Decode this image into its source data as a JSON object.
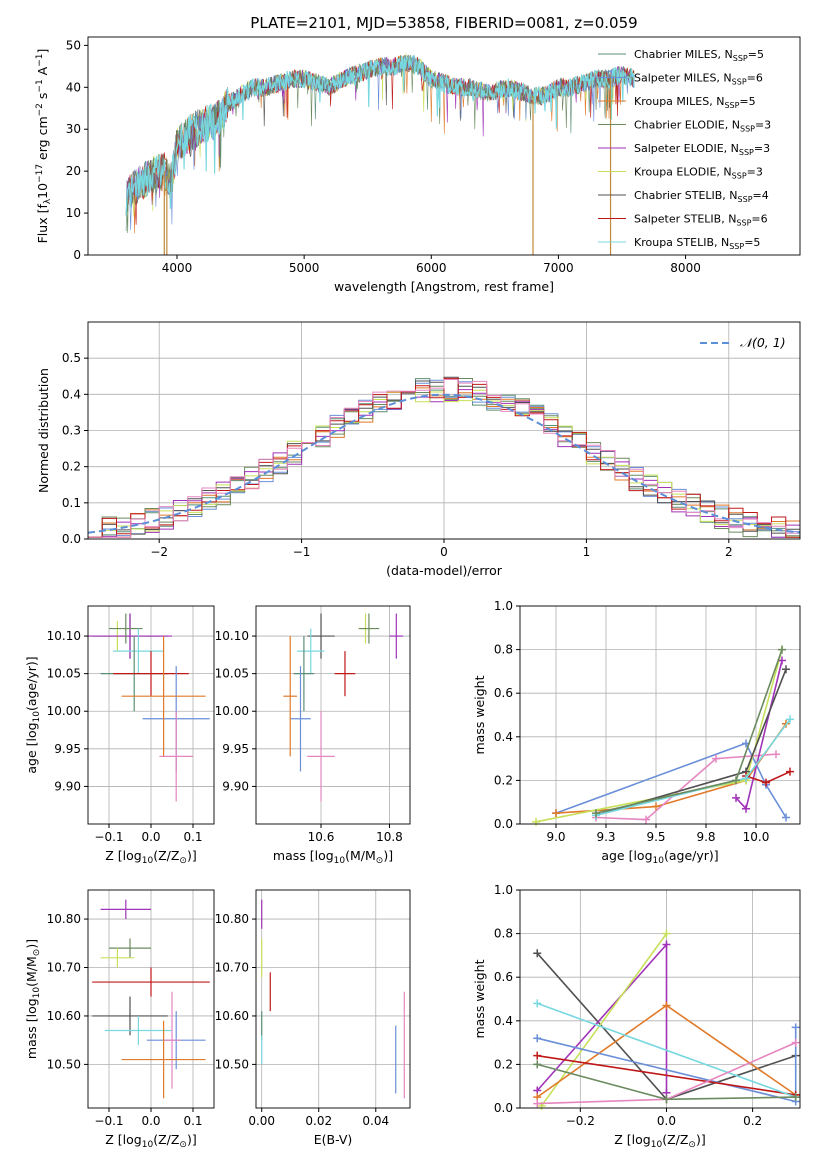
{
  "palette": {
    "chabrier_miles": "#5b8f75",
    "salpeter_miles": "#6a8fd8",
    "kroupa_miles": "#e07a2a",
    "chabrier_elodie": "#6b8a5f",
    "salpeter_elodie": "#a033b8",
    "kroupa_elodie": "#c7e05a",
    "chabrier_stelib": "#505050",
    "salpeter_stelib": "#c01818",
    "kroupa_stelib": "#78d8e0",
    "extra_pink": "#e586c0",
    "gauss": "#5b8fd8"
  },
  "chart_data": [
    {
      "id": "spectrum",
      "type": "line",
      "title": "PLATE=2101, MJD=53858, FIBERID=0081, z=0.059",
      "xlabel": "wavelength [Angstrom, rest frame]",
      "ylabel": "Flux [f$_\\lambda$10$^{-17}$ erg cm$^{-2}$ s$^{-1}$ A$^{-1}$]",
      "ylabel_parts": {
        "a": "Flux [f",
        "b": "λ",
        "c": "10",
        "d": "−17",
        "e": " erg cm",
        "f": "−2",
        "g": " s",
        "h": "−1",
        "i": " A",
        "j": "−1",
        "k": "]"
      },
      "xlim": [
        3300,
        8900
      ],
      "ylim": [
        0,
        52
      ],
      "xticks": [
        4000,
        5000,
        6000,
        7000,
        8000
      ],
      "yticks": [
        0,
        10,
        20,
        30,
        40,
        50
      ],
      "grid": false,
      "legend_position": "upper-right",
      "legend": [
        {
          "base": "Chabrier MILES, N",
          "sub": "SSP",
          "tail": "=5",
          "color": "chabrier_miles"
        },
        {
          "base": "Salpeter MILES, N",
          "sub": "SSP",
          "tail": "=6",
          "color": "salpeter_miles"
        },
        {
          "base": "Kroupa MILES, N",
          "sub": "SSP",
          "tail": "=5",
          "color": "kroupa_miles"
        },
        {
          "base": "Chabrier ELODIE, N",
          "sub": "SSP",
          "tail": "=3",
          "color": "chabrier_elodie"
        },
        {
          "base": "Salpeter ELODIE, N",
          "sub": "SSP",
          "tail": "=3",
          "color": "salpeter_elodie"
        },
        {
          "base": "Kroupa ELODIE, N",
          "sub": "SSP",
          "tail": "=3",
          "color": "kroupa_elodie"
        },
        {
          "base": "Chabrier STELIB, N",
          "sub": "SSP",
          "tail": "=4",
          "color": "chabrier_stelib"
        },
        {
          "base": "Salpeter STELIB, N",
          "sub": "SSP",
          "tail": "=6",
          "color": "salpeter_stelib"
        },
        {
          "base": "Kroupa STELIB, N",
          "sub": "SSP",
          "tail": "=5",
          "color": "kroupa_stelib"
        }
      ],
      "continuum": [
        [
          3600,
          14
        ],
        [
          3700,
          17
        ],
        [
          3800,
          19
        ],
        [
          3900,
          20
        ],
        [
          3950,
          17
        ],
        [
          4000,
          26
        ],
        [
          4100,
          29
        ],
        [
          4200,
          31
        ],
        [
          4300,
          32
        ],
        [
          4350,
          33
        ],
        [
          4400,
          36
        ],
        [
          4500,
          38
        ],
        [
          4600,
          40
        ],
        [
          4700,
          40
        ],
        [
          4800,
          41
        ],
        [
          4900,
          42
        ],
        [
          5000,
          42
        ],
        [
          5100,
          41
        ],
        [
          5200,
          40
        ],
        [
          5300,
          42
        ],
        [
          5400,
          43
        ],
        [
          5500,
          44
        ],
        [
          5600,
          45
        ],
        [
          5700,
          45
        ],
        [
          5800,
          46
        ],
        [
          5900,
          45
        ],
        [
          6000,
          42
        ],
        [
          6100,
          41
        ],
        [
          6200,
          40
        ],
        [
          6300,
          40
        ],
        [
          6400,
          39
        ],
        [
          6500,
          39
        ],
        [
          6600,
          40
        ],
        [
          6700,
          39
        ],
        [
          6800,
          38
        ],
        [
          6900,
          38
        ],
        [
          7000,
          40
        ],
        [
          7100,
          40
        ],
        [
          7200,
          41
        ],
        [
          7300,
          42
        ],
        [
          7400,
          42
        ],
        [
          7500,
          43
        ],
        [
          7600,
          42
        ]
      ],
      "spikes_down": [
        [
          3900,
          0
        ],
        [
          3920,
          0
        ],
        [
          6800,
          0
        ],
        [
          7410,
          0
        ]
      ]
    },
    {
      "id": "residuals",
      "type": "histogram",
      "xlabel": "(data-model)/error",
      "ylabel": "Normed distribution",
      "xlim": [
        -2.5,
        2.5
      ],
      "ylim": [
        0,
        0.6
      ],
      "xticks": [
        -2,
        -1,
        0,
        1,
        2
      ],
      "yticks": [
        0.0,
        0.1,
        0.2,
        0.3,
        0.4,
        0.5
      ],
      "grid": true,
      "legend_position": "upper-right",
      "legend": [
        {
          "label": "𝒩(0, 1)",
          "color": "gauss",
          "style": "dashed"
        }
      ],
      "bin_width": 0.1
    },
    {
      "id": "age_vs_Z",
      "type": "errorbar",
      "xlabel": "Z [log$_{10}$(Z/Z$_\\odot$)]",
      "ylabel": "age  [log$_{10}$(age/yr)]",
      "xlim": [
        -0.15,
        0.15
      ],
      "ylim": [
        9.85,
        10.14
      ],
      "xticks": [
        -0.1,
        0.0,
        0.1
      ],
      "yticks": [
        9.9,
        9.95,
        10.0,
        10.05,
        10.1
      ],
      "grid": true,
      "points": [
        {
          "x": -0.05,
          "y": 10.1,
          "xerr": 0.09,
          "yerr": 0.03,
          "color": "chabrier_stelib"
        },
        {
          "x": -0.08,
          "y": 10.1,
          "xerr": 0.02,
          "yerr": 0.02,
          "color": "kroupa_elodie"
        },
        {
          "x": -0.05,
          "y": 10.1,
          "xerr": 0.1,
          "yerr": 0.03,
          "color": "salpeter_elodie"
        },
        {
          "x": -0.06,
          "y": 10.11,
          "xerr": 0.04,
          "yerr": 0.02,
          "color": "chabrier_elodie"
        },
        {
          "x": -0.03,
          "y": 10.08,
          "xerr": 0.06,
          "yerr": 0.03,
          "color": "kroupa_stelib"
        },
        {
          "x": -0.04,
          "y": 10.05,
          "xerr": 0.08,
          "yerr": 0.05,
          "color": "chabrier_miles"
        },
        {
          "x": 0.0,
          "y": 10.05,
          "xerr": 0.09,
          "yerr": 0.03,
          "color": "salpeter_stelib"
        },
        {
          "x": 0.06,
          "y": 9.99,
          "xerr": 0.08,
          "yerr": 0.07,
          "color": "salpeter_miles"
        },
        {
          "x": 0.03,
          "y": 10.02,
          "xerr": 0.1,
          "yerr": 0.08,
          "color": "kroupa_miles"
        },
        {
          "x": 0.06,
          "y": 9.94,
          "xerr": 0.04,
          "yerr": 0.06,
          "color": "extra_pink"
        }
      ]
    },
    {
      "id": "age_vs_mass",
      "type": "errorbar",
      "xlabel": "mass [log$_{10}$(M/M$_\\odot$)]",
      "ylabel": "",
      "xlim": [
        10.41,
        10.86
      ],
      "ylim": [
        9.85,
        10.14
      ],
      "xticks": [
        10.6,
        10.8
      ],
      "yticks": [
        9.9,
        9.95,
        10.0,
        10.05,
        10.1
      ],
      "grid": true,
      "points": [
        {
          "x": 10.6,
          "y": 10.1,
          "xerr": 0.04,
          "yerr": 0.03,
          "color": "chabrier_stelib"
        },
        {
          "x": 10.73,
          "y": 10.11,
          "xerr": 0.02,
          "yerr": 0.02,
          "color": "kroupa_elodie"
        },
        {
          "x": 10.82,
          "y": 10.1,
          "xerr": 0.02,
          "yerr": 0.03,
          "color": "salpeter_elodie"
        },
        {
          "x": 10.74,
          "y": 10.11,
          "xerr": 0.03,
          "yerr": 0.02,
          "color": "chabrier_elodie"
        },
        {
          "x": 10.57,
          "y": 10.08,
          "xerr": 0.04,
          "yerr": 0.03,
          "color": "kroupa_stelib"
        },
        {
          "x": 10.55,
          "y": 10.05,
          "xerr": 0.03,
          "yerr": 0.05,
          "color": "chabrier_miles"
        },
        {
          "x": 10.67,
          "y": 10.05,
          "xerr": 0.03,
          "yerr": 0.03,
          "color": "salpeter_stelib"
        },
        {
          "x": 10.54,
          "y": 9.99,
          "xerr": 0.03,
          "yerr": 0.07,
          "color": "salpeter_miles"
        },
        {
          "x": 10.51,
          "y": 10.02,
          "xerr": 0.02,
          "yerr": 0.08,
          "color": "kroupa_miles"
        },
        {
          "x": 10.6,
          "y": 9.94,
          "xerr": 0.04,
          "yerr": 0.06,
          "color": "extra_pink"
        }
      ]
    },
    {
      "id": "weight_vs_age",
      "type": "line",
      "xlabel": "age  [log$_{10}$(age/yr)]",
      "ylabel": "mass weight",
      "xlim": [
        8.82,
        10.22
      ],
      "ylim": [
        0,
        1.0
      ],
      "xticks": [
        9.0,
        9.25,
        9.5,
        9.75,
        10.0
      ],
      "yticks": [
        0.0,
        0.2,
        0.4,
        0.6,
        0.8,
        1.0
      ],
      "grid": true,
      "series": [
        {
          "color": "salpeter_miles",
          "x": [
            9.0,
            9.95,
            10.05,
            10.15
          ],
          "y": [
            0.05,
            0.37,
            0.18,
            0.03
          ]
        },
        {
          "color": "kroupa_miles",
          "x": [
            9.0,
            9.5,
            9.95,
            10.15
          ],
          "y": [
            0.05,
            0.08,
            0.2,
            0.46
          ]
        },
        {
          "color": "extra_pink",
          "x": [
            9.2,
            9.45,
            9.8,
            10.1
          ],
          "y": [
            0.03,
            0.02,
            0.3,
            0.32
          ]
        },
        {
          "color": "kroupa_elodie",
          "x": [
            8.9,
            9.95,
            10.13
          ],
          "y": [
            0.01,
            0.2,
            0.8
          ]
        },
        {
          "color": "salpeter_elodie",
          "x": [
            9.9,
            9.95,
            10.13
          ],
          "y": [
            0.12,
            0.07,
            0.75
          ]
        },
        {
          "color": "chabrier_stelib",
          "x": [
            9.2,
            9.95,
            10.15
          ],
          "y": [
            0.04,
            0.24,
            0.71
          ]
        },
        {
          "color": "salpeter_stelib",
          "x": [
            9.95,
            10.05,
            10.17
          ],
          "y": [
            0.22,
            0.19,
            0.24
          ]
        },
        {
          "color": "kroupa_stelib",
          "x": [
            9.2,
            9.95,
            10.17
          ],
          "y": [
            0.04,
            0.21,
            0.48
          ]
        },
        {
          "color": "chabrier_elodie",
          "x": [
            9.2,
            9.9,
            10.13
          ],
          "y": [
            0.05,
            0.2,
            0.8
          ]
        }
      ]
    },
    {
      "id": "mass_vs_Z",
      "type": "errorbar",
      "xlabel": "Z [log$_{10}$(Z/Z$_\\odot$)]",
      "ylabel": "mass [log$_{10}$(M/M$_\\odot$)]",
      "xlim": [
        -0.15,
        0.15
      ],
      "ylim": [
        10.41,
        10.86
      ],
      "xticks": [
        -0.1,
        0.0,
        0.1
      ],
      "yticks": [
        10.5,
        10.6,
        10.7,
        10.8
      ],
      "grid": true,
      "points": [
        {
          "x": -0.06,
          "y": 10.82,
          "xerr": 0.06,
          "yerr": 0.02,
          "color": "salpeter_elodie"
        },
        {
          "x": -0.05,
          "y": 10.74,
          "xerr": 0.05,
          "yerr": 0.02,
          "color": "chabrier_elodie"
        },
        {
          "x": -0.08,
          "y": 10.72,
          "xerr": 0.04,
          "yerr": 0.02,
          "color": "kroupa_elodie"
        },
        {
          "x": 0.0,
          "y": 10.67,
          "xerr": 0.14,
          "yerr": 0.03,
          "color": "salpeter_stelib"
        },
        {
          "x": -0.05,
          "y": 10.6,
          "xerr": 0.09,
          "yerr": 0.04,
          "color": "chabrier_stelib"
        },
        {
          "x": -0.03,
          "y": 10.57,
          "xerr": 0.08,
          "yerr": 0.03,
          "color": "kroupa_stelib"
        },
        {
          "x": 0.06,
          "y": 10.55,
          "xerr": 0.07,
          "yerr": 0.06,
          "color": "salpeter_miles"
        },
        {
          "x": 0.05,
          "y": 10.55,
          "xerr": 0.02,
          "yerr": 0.1,
          "color": "extra_pink"
        },
        {
          "x": 0.03,
          "y": 10.51,
          "xerr": 0.1,
          "yerr": 0.08,
          "color": "kroupa_miles"
        }
      ]
    },
    {
      "id": "mass_vs_ebv",
      "type": "errorbar",
      "xlabel": "E(B-V)",
      "ylabel": "",
      "xlim": [
        -0.002,
        0.052
      ],
      "ylim": [
        10.41,
        10.86
      ],
      "xticks": [
        0.0,
        0.02,
        0.04
      ],
      "yticks": [
        10.5,
        10.6,
        10.7,
        10.8
      ],
      "grid": true,
      "points": [
        {
          "x": 0.0,
          "y": 10.81,
          "xerr": 0,
          "yerr": 0.03,
          "color": "salpeter_elodie"
        },
        {
          "x": 0.0,
          "y": 10.72,
          "xerr": 0,
          "yerr": 0.04,
          "color": "kroupa_elodie"
        },
        {
          "x": 0.003,
          "y": 10.65,
          "xerr": 0,
          "yerr": 0.04,
          "color": "salpeter_stelib"
        },
        {
          "x": 0.0,
          "y": 10.58,
          "xerr": 0,
          "yerr": 0.03,
          "color": "chabrier_miles"
        },
        {
          "x": 0.0,
          "y": 10.53,
          "xerr": 0,
          "yerr": 0.03,
          "color": "kroupa_stelib"
        },
        {
          "x": 0.047,
          "y": 10.51,
          "xerr": 0,
          "yerr": 0.07,
          "color": "salpeter_miles"
        },
        {
          "x": 0.05,
          "y": 10.54,
          "xerr": 0,
          "yerr": 0.11,
          "color": "extra_pink"
        }
      ]
    },
    {
      "id": "weight_vs_Z",
      "type": "line",
      "xlabel": "Z [log$_{10}$(Z/Z$_\\odot$)]",
      "ylabel": "mass weight",
      "xlim": [
        -0.34,
        0.31
      ],
      "ylim": [
        0,
        1.0
      ],
      "xticks": [
        -0.2,
        0.0,
        0.2
      ],
      "yticks": [
        0.0,
        0.2,
        0.4,
        0.6,
        0.8,
        1.0
      ],
      "grid": true,
      "series": [
        {
          "color": "chabrier_stelib",
          "x": [
            -0.3,
            0.0,
            0.3
          ],
          "y": [
            0.71,
            0.04,
            0.24
          ]
        },
        {
          "color": "salpeter_elodie",
          "x": [
            -0.3,
            0.0,
            0.0
          ],
          "y": [
            0.08,
            0.75,
            0.07
          ]
        },
        {
          "color": "kroupa_elodie",
          "x": [
            -0.29,
            0.0
          ],
          "y": [
            0.01,
            0.8
          ]
        },
        {
          "color": "kroupa_miles",
          "x": [
            -0.3,
            0.0,
            0.3
          ],
          "y": [
            0.05,
            0.47,
            0.06
          ]
        },
        {
          "color": "salpeter_miles",
          "x": [
            -0.3,
            0.3,
            0.3
          ],
          "y": [
            0.32,
            0.03,
            0.37
          ]
        },
        {
          "color": "salpeter_stelib",
          "x": [
            -0.3,
            0.3
          ],
          "y": [
            0.24,
            0.06
          ]
        },
        {
          "color": "kroupa_stelib",
          "x": [
            -0.3,
            0.3
          ],
          "y": [
            0.48,
            0.05
          ]
        },
        {
          "color": "extra_pink",
          "x": [
            -0.3,
            0.0,
            0.3
          ],
          "y": [
            0.02,
            0.04,
            0.3
          ]
        },
        {
          "color": "chabrier_elodie",
          "x": [
            -0.3,
            0.0,
            0.3
          ],
          "y": [
            0.2,
            0.04,
            0.05
          ]
        }
      ]
    }
  ]
}
